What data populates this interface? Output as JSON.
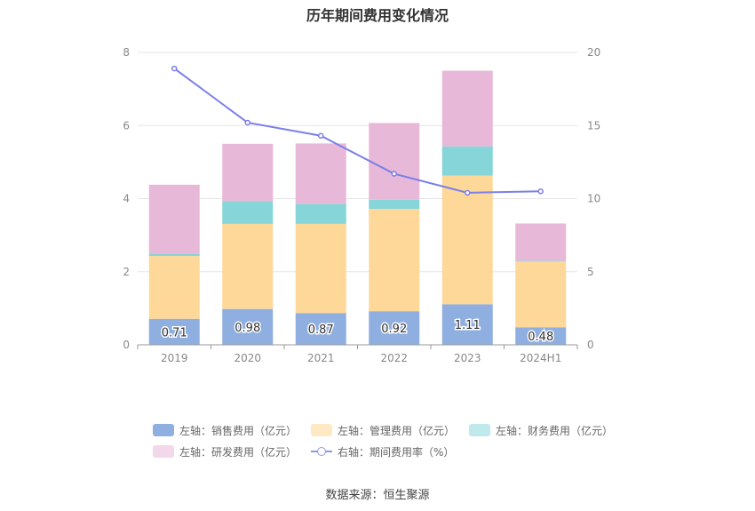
{
  "chart_data": {
    "type": "bar",
    "title": "历年期间费用变化情况",
    "categories": [
      "2019",
      "2020",
      "2021",
      "2022",
      "2023",
      "2024H1"
    ],
    "left_axis": {
      "ylim": [
        0,
        8
      ],
      "ticks": [
        "0",
        "2",
        "4",
        "6",
        "8"
      ]
    },
    "right_axis": {
      "ylim": [
        0,
        20
      ],
      "ticks": [
        "0",
        "5",
        "10",
        "15",
        "20"
      ]
    },
    "series": [
      {
        "name": "左轴：销售费用（亿元）",
        "kind": "bar",
        "color": "#8fafe0",
        "values": [
          0.71,
          0.98,
          0.87,
          0.92,
          1.11,
          0.48
        ],
        "labels": [
          "0.71",
          "0.98",
          "0.87",
          "0.92",
          "1.11",
          "0.48"
        ]
      },
      {
        "name": "左轴：管理费用（亿元）",
        "kind": "bar",
        "color": "#fdd899",
        "values": [
          1.72,
          2.33,
          2.44,
          2.8,
          3.52,
          1.8
        ]
      },
      {
        "name": "左轴：财务费用（亿元）",
        "kind": "bar",
        "color": "#86d5d9",
        "values": [
          0.06,
          0.62,
          0.55,
          0.25,
          0.8,
          0.02
        ]
      },
      {
        "name": "左轴：研发费用（亿元）",
        "kind": "bar",
        "color": "#e8b8d8",
        "values": [
          1.89,
          1.57,
          1.65,
          2.1,
          2.07,
          1.02
        ]
      },
      {
        "name": "右轴：期间费用率（%）",
        "kind": "line",
        "color": "#7b7fe8",
        "values": [
          18.9,
          15.2,
          14.3,
          11.7,
          10.4,
          10.5
        ]
      }
    ],
    "legend_position": "bottom"
  },
  "legend_colors": {
    "sales": "#8fafe0",
    "mgmt": "#ffe9c4",
    "finance": "#bfe9ea",
    "rd": "#f3d7ea"
  },
  "source_text": "数据来源：恒生聚源"
}
